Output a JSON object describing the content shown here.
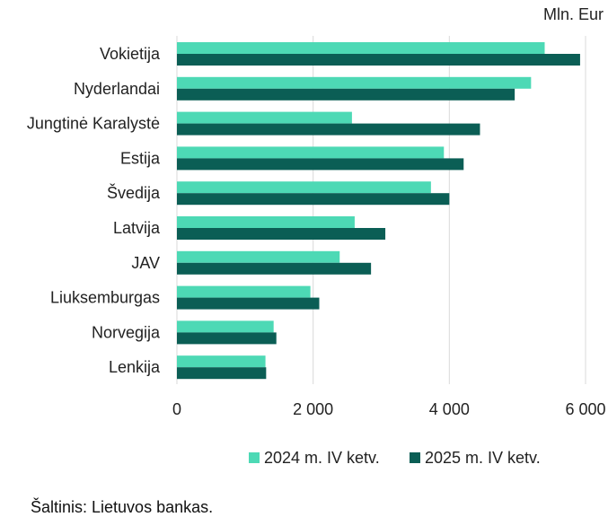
{
  "chart_data": {
    "type": "bar",
    "orientation": "horizontal",
    "unit": "Mln. Eur",
    "categories": [
      "Vokietija",
      "Nyderlandai",
      "Jungtinė Karalystė",
      "Estija",
      "Švedija",
      "Latvija",
      "JAV",
      "Liuksemburgas",
      "Norvegija",
      "Lenkija"
    ],
    "series": [
      {
        "name": "2024 m. IV ketv.",
        "color": "#4dd9b5",
        "values": [
          5400,
          5200,
          2570,
          3920,
          3730,
          2610,
          2390,
          1960,
          1420,
          1300
        ]
      },
      {
        "name": "2025 m. IV ketv.",
        "color": "#0b5e55",
        "values": [
          5920,
          4960,
          4450,
          4210,
          4000,
          3060,
          2850,
          2090,
          1460,
          1310
        ]
      }
    ],
    "x_ticks": [
      "0",
      "2 000",
      "4 000",
      "6 000"
    ],
    "xlim": [
      0,
      6000
    ],
    "grid": "vertical",
    "legend": "bottom"
  },
  "source": "Šaltinis: Lietuvos bankas."
}
